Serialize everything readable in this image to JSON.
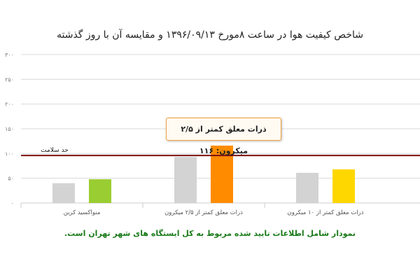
{
  "chart_data": {
    "type": "bar",
    "title": "شاخص کیفیت هوا در ساعت ۸مورخ ۱۳۹۶/۰۹/۱۳ و مقایسه آن با روز گذشته",
    "categories": [
      "منواکسید کربن",
      "ذرات معلق کمتر از ۲/۵ میکرون",
      "ذرات معلق کمتر از ۱۰ میکرون"
    ],
    "series": [
      {
        "values": [
          40,
          93,
          61
        ],
        "colors": [
          "#d3d3d3",
          "#d3d3d3",
          "#d3d3d3"
        ]
      },
      {
        "values": [
          48,
          116,
          68
        ],
        "colors": [
          "#9acd32",
          "#ff8c00",
          "#ffd700"
        ]
      }
    ],
    "ylim": [
      0,
      300
    ],
    "yticks": [
      0,
      50,
      100,
      150,
      200,
      250,
      300
    ],
    "ytick_labels": [
      "۰",
      "۵۰",
      "۱۰۰",
      "۱۵۰",
      "۲۰۰",
      "۲۵۰",
      "۳۰۰"
    ],
    "grid": true,
    "reference_line": {
      "label": "حد سلامت",
      "value": 96,
      "color": "#7b1010"
    },
    "tooltip": "ذرات معلق کمتر از ۲/۵ میکرون: ۱۱۶",
    "note": "نمودار شامل اطلاعات تایید شده مربوط به کل ایستگاه های شهر تهران است."
  }
}
